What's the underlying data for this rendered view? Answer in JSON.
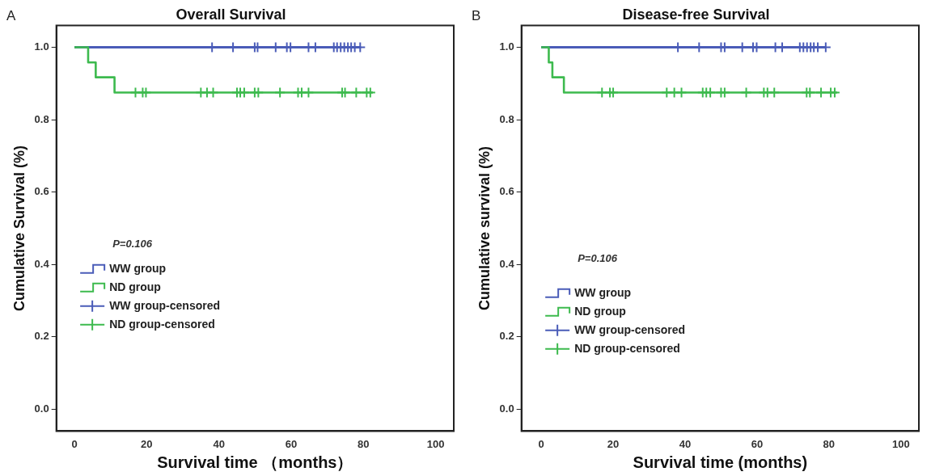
{
  "chart_data": [
    {
      "type": "step",
      "title": "Overall Survival",
      "xlabel": "Survival time （months）",
      "ylabel": "Cumulative Survival (%)",
      "annotations": [
        "A",
        "P=0.106"
      ],
      "xlim": [
        -5,
        105
      ],
      "xticks": [
        0,
        20,
        40,
        60,
        80,
        100
      ],
      "ylim": [
        -0.06,
        1.06
      ],
      "yticks": [
        {
          "value": 0,
          "label": "0.0"
        },
        {
          "value": 0.2,
          "label": "0.2"
        },
        {
          "value": 0.4,
          "label": "0.4"
        },
        {
          "value": 0.6,
          "label": "0.6"
        },
        {
          "value": 0.8,
          "label": "0.8"
        },
        {
          "value": 1,
          "label": "1.0"
        }
      ],
      "grid": false,
      "legend": "left",
      "line_style": "solid",
      "series": [
        {
          "name": "WW group",
          "color": "#4a5cb8",
          "x": [
            0,
            79.3
          ],
          "values": [
            1,
            1
          ]
        },
        {
          "name": "ND group",
          "color": "#3dba4e",
          "x": [
            0,
            3.8,
            5.9,
            11.1,
            82.6
          ],
          "values": [
            1,
            0.958,
            0.917,
            0.875,
            0.875
          ]
        },
        {
          "name": "WW group-censored",
          "type": "scatter",
          "marker": "cross",
          "color": "#4a5cb8",
          "x": [
            38.1,
            43.9,
            49.9,
            50.7,
            55.7,
            58.8,
            59.8,
            64.8,
            66.7,
            71.8,
            72.7,
            73.7,
            74.7,
            75.7,
            76.6,
            77.6,
            79.1
          ],
          "values": [
            1,
            1,
            1,
            1,
            1,
            1,
            1,
            1,
            1,
            1,
            1,
            1,
            1,
            1,
            1,
            1,
            1
          ]
        },
        {
          "name": "ND group-censored",
          "type": "scatter",
          "marker": "cross",
          "color": "#3dba4e",
          "x": [
            16.9,
            18.9,
            19.8,
            35.0,
            36.7,
            38.4,
            45.0,
            45.9,
            47.0,
            49.9,
            50.9,
            56.9,
            61.9,
            62.9,
            64.8,
            74.1,
            74.9,
            78.0,
            80.9,
            81.9
          ],
          "values": [
            0.875,
            0.875,
            0.875,
            0.875,
            0.875,
            0.875,
            0.875,
            0.875,
            0.875,
            0.875,
            0.875,
            0.875,
            0.875,
            0.875,
            0.875,
            0.875,
            0.875,
            0.875,
            0.875,
            0.875
          ]
        }
      ]
    },
    {
      "type": "step",
      "title": "Disease-free Survival",
      "xlabel": "Survival time (months)",
      "ylabel": "Cumulative survival (%)",
      "annotations": [
        "B",
        "P=0.106"
      ],
      "xlim": [
        -5.5,
        105
      ],
      "xticks": [
        0,
        20,
        40,
        60,
        80,
        100
      ],
      "ylim": [
        -0.06,
        1.06
      ],
      "yticks": [
        {
          "value": 0,
          "label": "0.0"
        },
        {
          "value": 0.2,
          "label": "0.2"
        },
        {
          "value": 0.4,
          "label": "0.4"
        },
        {
          "value": 0.6,
          "label": "0.6"
        },
        {
          "value": 0.8,
          "label": "0.8"
        },
        {
          "value": 1,
          "label": "1.0"
        }
      ],
      "grid": false,
      "legend": "left",
      "line_style": "solid",
      "series": [
        {
          "name": "WW group",
          "color": "#4a5cb8",
          "x": [
            0,
            79.1
          ],
          "values": [
            1,
            1
          ]
        },
        {
          "name": "ND group",
          "color": "#3dba4e",
          "x": [
            0,
            2.1,
            3.1,
            6.3,
            82.3
          ],
          "values": [
            1,
            0.958,
            0.917,
            0.875,
            0.875
          ]
        },
        {
          "name": "WW group-censored",
          "type": "scatter",
          "marker": "cross",
          "color": "#4a5cb8",
          "x": [
            38.0,
            43.9,
            50.0,
            51.0,
            55.9,
            58.9,
            59.9,
            65.1,
            67.0,
            71.9,
            72.9,
            73.9,
            74.9,
            75.8,
            76.9,
            79.1
          ],
          "values": [
            1,
            1,
            1,
            1,
            1,
            1,
            1,
            1,
            1,
            1,
            1,
            1,
            1,
            1,
            1,
            1
          ]
        },
        {
          "name": "ND group-censored",
          "type": "scatter",
          "marker": "cross",
          "color": "#3dba4e",
          "x": [
            16.9,
            19.1,
            20.0,
            34.9,
            37.0,
            39.0,
            44.9,
            45.9,
            47.0,
            50.0,
            51.0,
            57.0,
            61.9,
            62.9,
            64.8,
            73.8,
            74.7,
            77.8,
            80.5,
            81.6
          ],
          "values": [
            0.875,
            0.875,
            0.875,
            0.875,
            0.875,
            0.875,
            0.875,
            0.875,
            0.875,
            0.875,
            0.875,
            0.875,
            0.875,
            0.875,
            0.875,
            0.875,
            0.875,
            0.875,
            0.875,
            0.875
          ]
        }
      ]
    }
  ]
}
